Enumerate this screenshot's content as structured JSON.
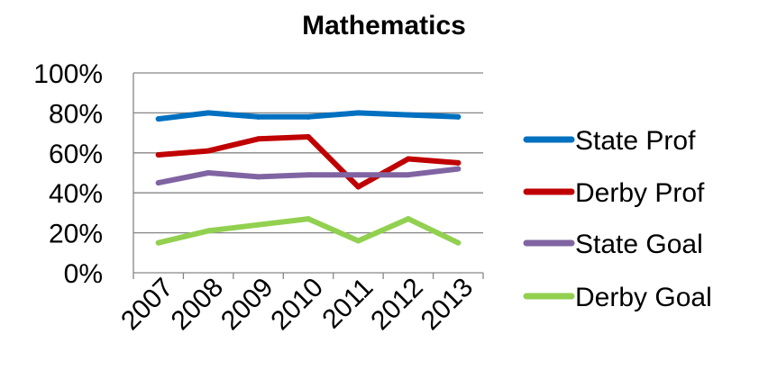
{
  "chart_data": {
    "type": "line",
    "title": "Mathematics",
    "xlabel": "",
    "ylabel": "",
    "categories": [
      "2007",
      "2008",
      "2009",
      "2010",
      "2011",
      "2012",
      "2013"
    ],
    "ylim": [
      0,
      100
    ],
    "yticks": [
      "0%",
      "20%",
      "40%",
      "60%",
      "80%",
      "100%"
    ],
    "grid": "horizontal",
    "legend_position": "right",
    "series": [
      {
        "name": "State Prof",
        "color": "#0070C0",
        "values": [
          77,
          80,
          78,
          78,
          80,
          79,
          78
        ]
      },
      {
        "name": "Derby Prof",
        "color": "#C00000",
        "values": [
          59,
          61,
          67,
          68,
          43,
          57,
          55
        ]
      },
      {
        "name": "State Goal",
        "color": "#8064A2",
        "values": [
          45,
          50,
          48,
          49,
          49,
          49,
          52
        ]
      },
      {
        "name": "Derby Goal",
        "color": "#92D050",
        "values": [
          15,
          21,
          24,
          27,
          16,
          27,
          15
        ]
      }
    ]
  }
}
